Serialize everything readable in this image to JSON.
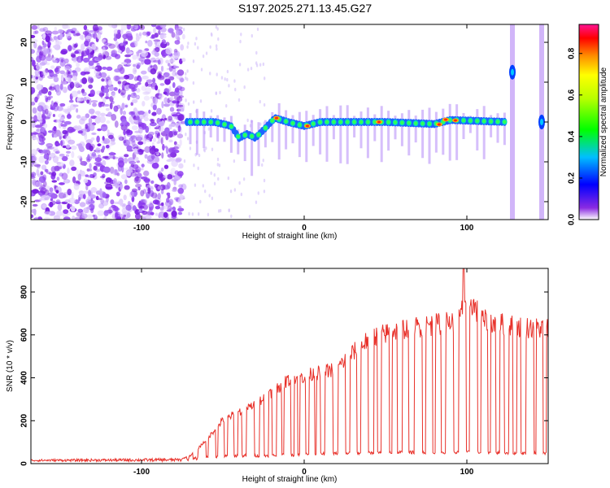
{
  "title": "S197.2025.271.13.45.G27",
  "colors": {
    "snr_line": "#e8312a",
    "axis": "#000000",
    "dots": "#7a1fe0"
  },
  "chart_data": [
    {
      "type": "heatmap",
      "name": "spectrogram",
      "xlabel": "Height of straight line (km)",
      "ylabel": "Frequency (Hz)",
      "xlim": [
        -168,
        150
      ],
      "ylim": [
        -24.5,
        24.5
      ],
      "xticks": [
        -100,
        0,
        100
      ],
      "yticks": [
        -20,
        -10,
        0,
        10,
        20
      ],
      "colorbar": {
        "label": "Normalized spectral amplitude",
        "ticks": [
          0.0,
          0.2,
          0.4,
          0.6,
          0.8
        ],
        "range": [
          0,
          0.94
        ]
      },
      "noise_region_x": [
        -168,
        -74
      ],
      "signal_band": {
        "x_range": [
          -74,
          125
        ],
        "mean_frequency_hz": 0,
        "approx_frequency_dip_hz": [
          [
            -70,
            0
          ],
          [
            -55,
            0
          ],
          [
            -45,
            -1
          ],
          [
            -40,
            -4
          ],
          [
            -35,
            -3
          ],
          [
            -30,
            -4
          ],
          [
            -25,
            -2
          ],
          [
            -18,
            1
          ],
          [
            -10,
            0
          ],
          [
            0,
            -1
          ],
          [
            10,
            0
          ],
          [
            50,
            0
          ],
          [
            80,
            -0.5
          ],
          [
            90,
            0.5
          ],
          [
            125,
            0
          ]
        ]
      },
      "edge_features_x": [
        128,
        146
      ]
    },
    {
      "type": "line",
      "name": "snr",
      "xlabel": "Height of straight line (km)",
      "ylabel": "SNR (10 * v/v)",
      "xlim": [
        -168,
        150
      ],
      "ylim": [
        0,
        910
      ],
      "xticks": [
        -100,
        0,
        100
      ],
      "yticks": [
        0,
        200,
        400,
        600,
        800
      ],
      "series": [
        {
          "name": "SNR",
          "envelope_high": [
            [
              -168,
              20
            ],
            [
              -75,
              25
            ],
            [
              -70,
              40
            ],
            [
              -60,
              120
            ],
            [
              -50,
              220
            ],
            [
              -40,
              260
            ],
            [
              -30,
              300
            ],
            [
              -20,
              360
            ],
            [
              -10,
              420
            ],
            [
              0,
              440
            ],
            [
              20,
              480
            ],
            [
              30,
              560
            ],
            [
              40,
              630
            ],
            [
              60,
              680
            ],
            [
              80,
              700
            ],
            [
              95,
              720
            ],
            [
              100,
              850
            ],
            [
              110,
              720
            ],
            [
              130,
              690
            ],
            [
              150,
              680
            ]
          ],
          "envelope_low": [
            [
              -168,
              10
            ],
            [
              -75,
              10
            ],
            [
              -60,
              20
            ],
            [
              -40,
              30
            ],
            [
              -20,
              30
            ],
            [
              0,
              35
            ],
            [
              20,
              40
            ],
            [
              60,
              45
            ],
            [
              100,
              45
            ],
            [
              150,
              40
            ]
          ],
          "peak": {
            "x": 98,
            "y": 910
          }
        }
      ]
    }
  ]
}
